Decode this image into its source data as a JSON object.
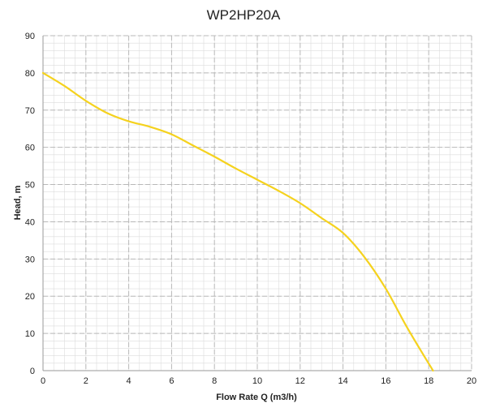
{
  "colors": {
    "curve": "#F5D21E",
    "major_grid": "#b8b8b8",
    "minor_grid": "#dcdcdc",
    "axis": "#9a9a9a",
    "background": "#ffffff"
  },
  "chart_data": {
    "type": "line",
    "title": "WP2HP20A",
    "xlabel": "Flow Rate Q (m3/h)",
    "ylabel": "Head, m",
    "xlim": [
      0,
      20
    ],
    "ylim": [
      0,
      90
    ],
    "x_major_step": 2,
    "y_major_step": 10,
    "x_minor_step": 0.5,
    "y_minor_step": 2,
    "x_tick_labels": [
      "0",
      "2",
      "4",
      "6",
      "8",
      "10",
      "12",
      "14",
      "16",
      "18",
      "20"
    ],
    "y_tick_labels": [
      "0",
      "10",
      "20",
      "30",
      "40",
      "50",
      "60",
      "70",
      "80",
      "90"
    ],
    "grid": true,
    "legend": "none",
    "series": [
      {
        "x": [
          0,
          1,
          2,
          3,
          4,
          5,
          6,
          7,
          8,
          9,
          10,
          11,
          12,
          13,
          14,
          15,
          16,
          17,
          18.2
        ],
        "y": [
          80,
          76.5,
          72.5,
          69.2,
          67,
          65.5,
          63.5,
          60.5,
          57.5,
          54.3,
          51.3,
          48.3,
          45,
          41,
          37,
          30.5,
          22,
          11.5,
          0
        ]
      }
    ]
  }
}
